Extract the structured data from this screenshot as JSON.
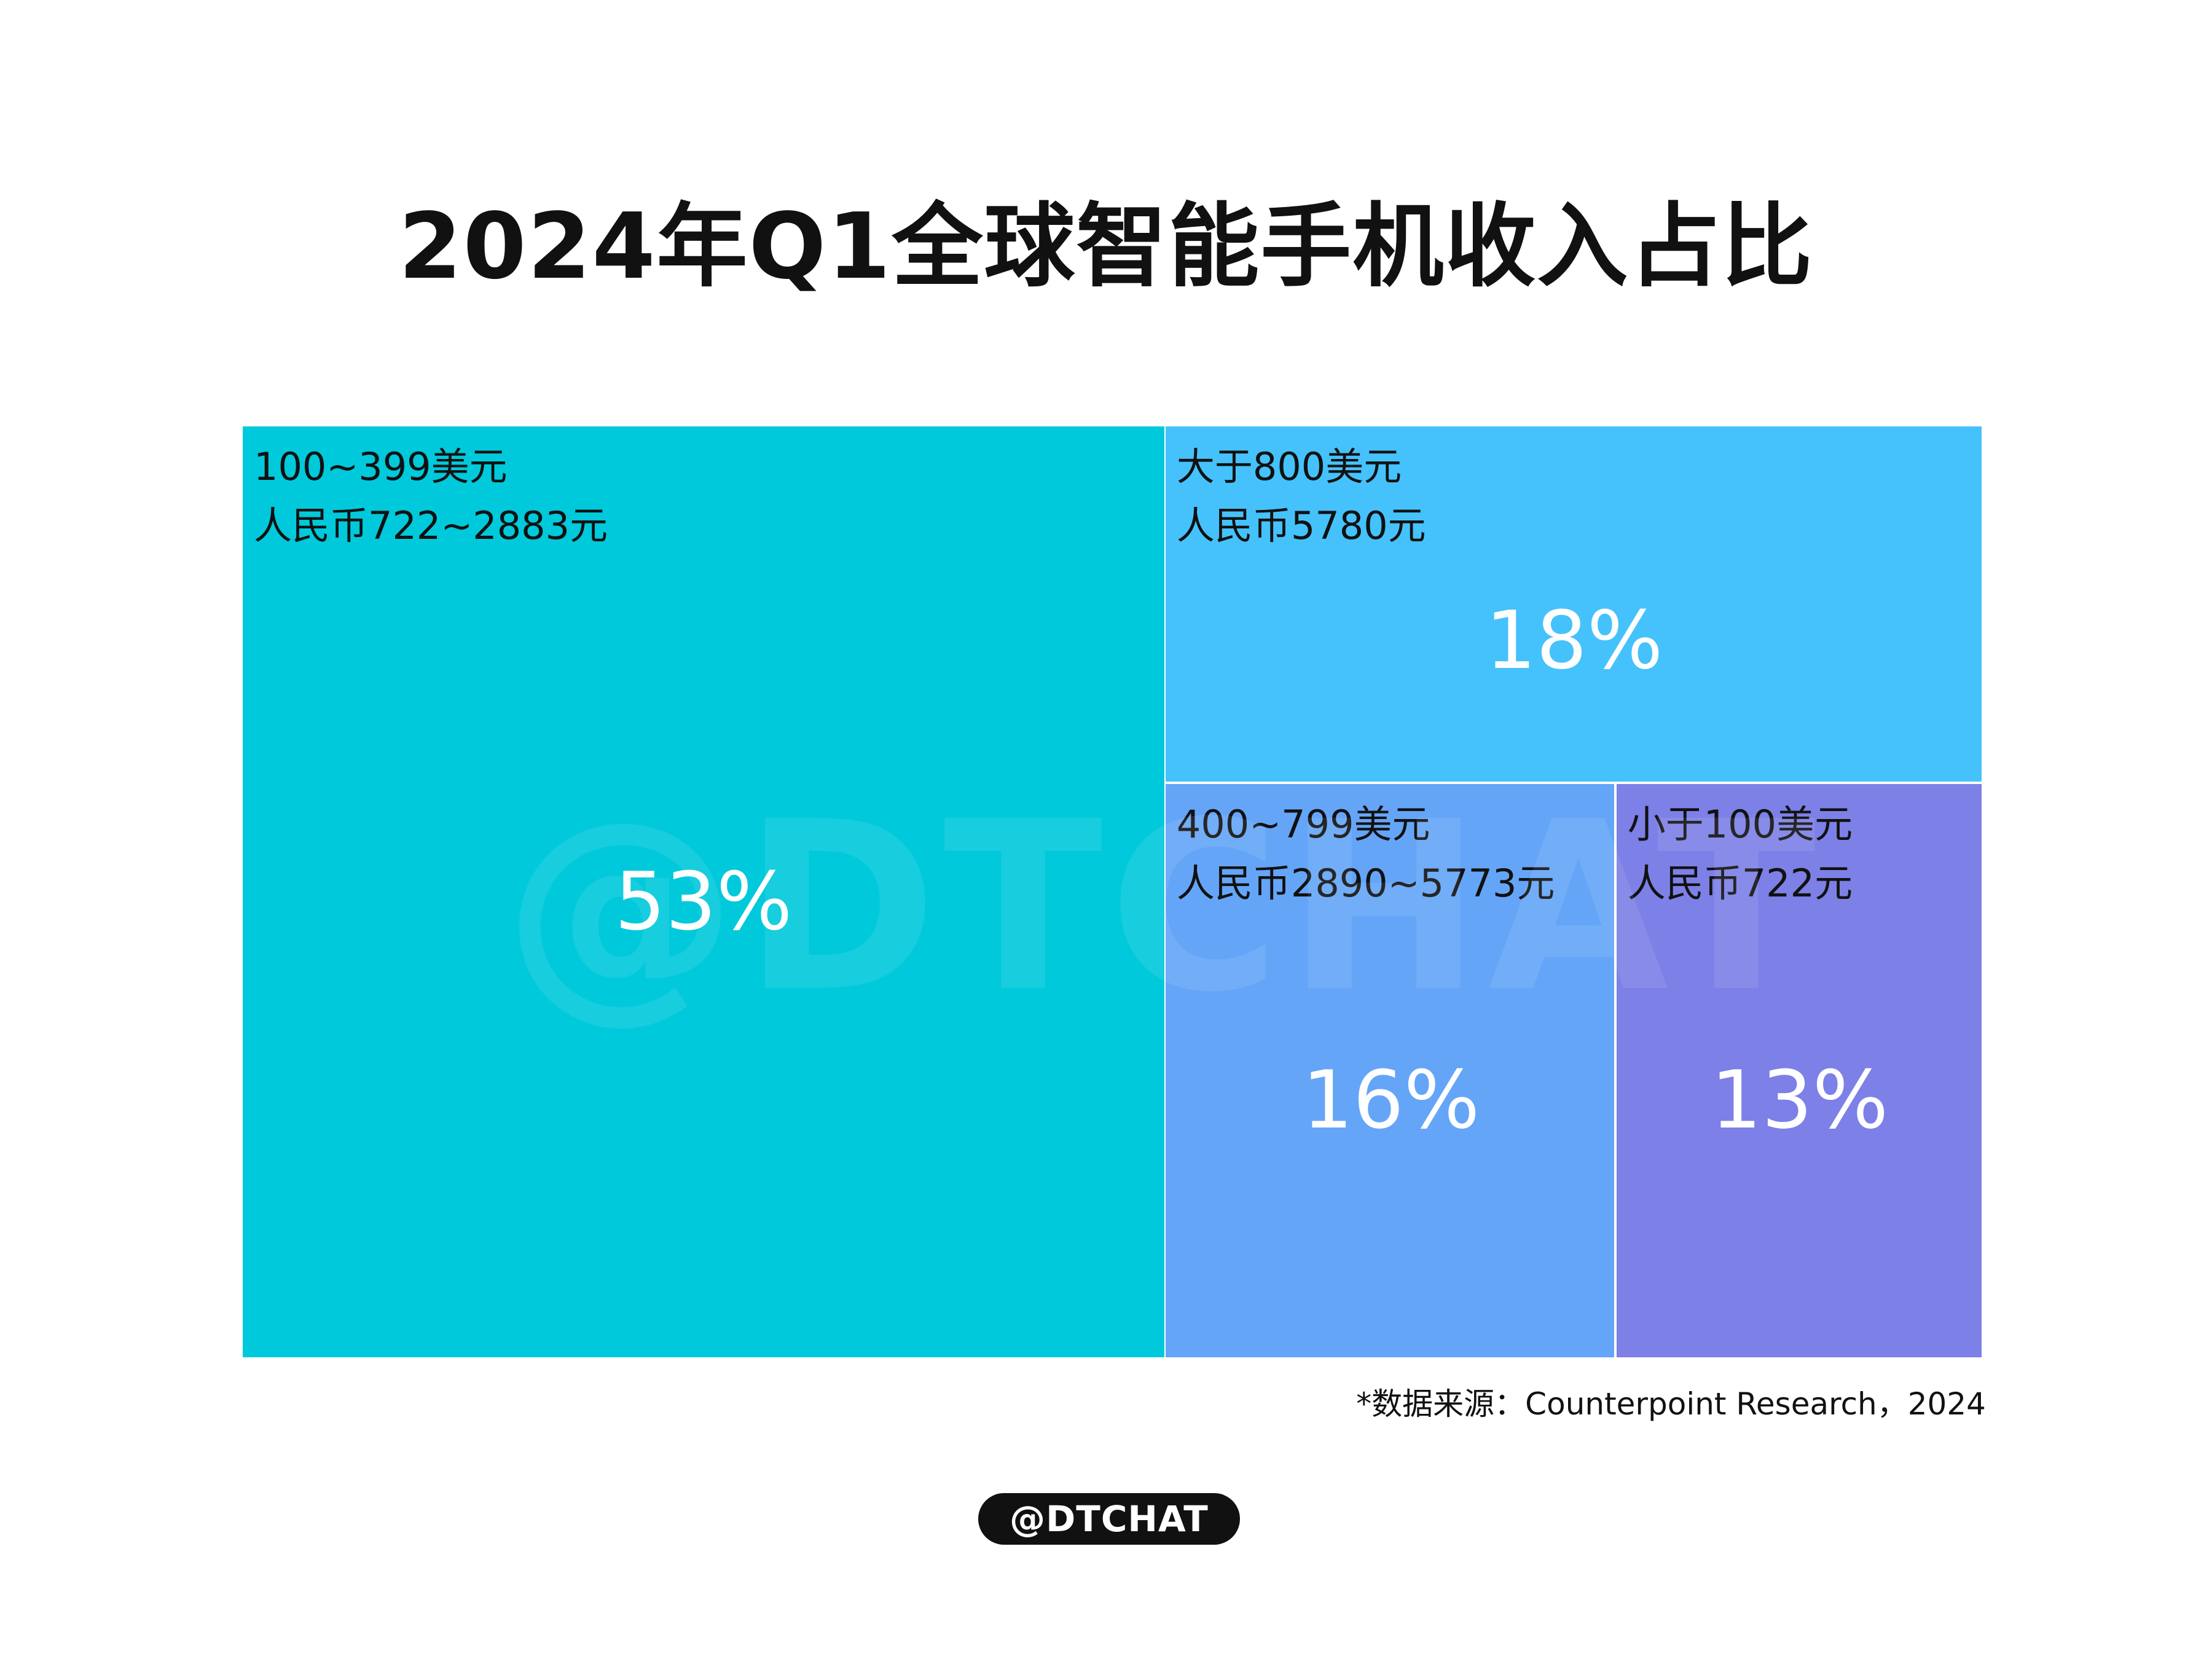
{
  "title": "2024年Q1全球智能手机收入占比",
  "chart_data": {
    "type": "treemap",
    "title": "2024年Q1全球智能手机收入占比",
    "unit": "%",
    "items": [
      {
        "label_line1": "100~399美元",
        "label_line2": "人民币722~2883元",
        "value": 53,
        "value_label": "53%",
        "color": "#00C9DB"
      },
      {
        "label_line1": "大于800美元",
        "label_line2": "人民币5780元",
        "value": 18,
        "value_label": "18%",
        "color": "#45C2FC"
      },
      {
        "label_line1": "400~799美元",
        "label_line2": "人民币2890~5773元",
        "value": 16,
        "value_label": "16%",
        "color": "#65A5F7"
      },
      {
        "label_line1": "小于100美元",
        "label_line2": "人民币722元",
        "value": 13,
        "value_label": "13%",
        "color": "#7D80E6"
      }
    ]
  },
  "watermark": "@DTCHAT",
  "source": "*数据来源：Counterpoint Research，2024",
  "badge": "@DTCHAT"
}
